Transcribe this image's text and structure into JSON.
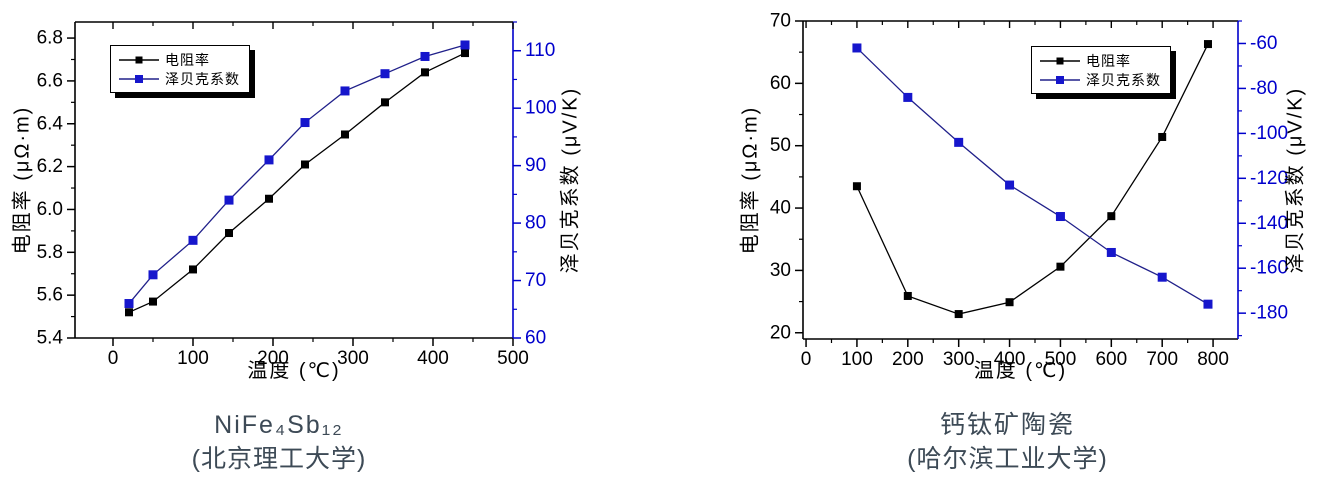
{
  "figure": {
    "background": "#ffffff",
    "left_axis_color": "#000000",
    "caption_color": "#3d4a56"
  },
  "chart_data": [
    {
      "type": "line",
      "title": "NiFe₄Sb₁₂",
      "subtitle": "(北京理工大学)",
      "xlabel": "温度 (℃)",
      "ylabel_left": "电阻率 (μΩ·m)",
      "ylabel_right": "泽贝克系数 (μV/K)",
      "legend_position": "top-left-inside",
      "grid": false,
      "x_range": [
        -47.5,
        500
      ],
      "x_ticks": [
        "0",
        "100",
        "200",
        "300",
        "400",
        "500"
      ],
      "x_minor_step": 50,
      "yleft_range": [
        5.4,
        6.875
      ],
      "yleft_ticks": [
        "5.4",
        "5.6",
        "5.8",
        "6.0",
        "6.2",
        "6.4",
        "6.6",
        "6.8"
      ],
      "yleft_minor_step": 0.1,
      "yright_range": [
        60,
        115
      ],
      "yright_ticks": [
        "60",
        "70",
        "80",
        "90",
        "100",
        "110"
      ],
      "yright_minor_step": 5,
      "right_axis_color": "#0000cc",
      "series": [
        {
          "name": "电阻率",
          "axis": "left",
          "line_color": "#000000",
          "marker_color": "#000000",
          "x": [
            20,
            50,
            100,
            145,
            195,
            240,
            290,
            340,
            390,
            440
          ],
          "y": [
            5.52,
            5.57,
            5.72,
            5.89,
            6.05,
            6.21,
            6.35,
            6.5,
            6.64,
            6.73
          ]
        },
        {
          "name": "泽贝克系数",
          "axis": "right",
          "line_color": "#20208a",
          "marker_color": "#1616cc",
          "x": [
            20,
            50,
            100,
            145,
            195,
            240,
            290,
            340,
            390,
            440
          ],
          "y": [
            66,
            71,
            77,
            84,
            91,
            97.5,
            103,
            106,
            109,
            111
          ]
        }
      ]
    },
    {
      "type": "line",
      "title": "钙钛矿陶瓷",
      "subtitle": "(哈尔滨工业大学)",
      "xlabel": "温度 (℃)",
      "ylabel_left": "电阻率 (μΩ·m)",
      "ylabel_right": "泽贝克系数 (μV/K)",
      "legend_position": "top-center-inside",
      "grid": false,
      "x_range": [
        -6,
        849
      ],
      "x_ticks": [
        "0",
        "100",
        "200",
        "300",
        "400",
        "500",
        "600",
        "700",
        "800"
      ],
      "x_minor_step": 50,
      "yleft_range": [
        19,
        70
      ],
      "yleft_ticks": [
        "20",
        "30",
        "40",
        "50",
        "60",
        "70"
      ],
      "yleft_minor_step": 5,
      "yright_range": [
        -191.5,
        -50
      ],
      "yright_ticks": [
        "-60",
        "-80",
        "-100",
        "-120",
        "-140",
        "-160",
        "-180"
      ],
      "yright_minor_step": 10,
      "right_axis_color": "#0000cc",
      "series": [
        {
          "name": "电阻率",
          "axis": "left",
          "line_color": "#000000",
          "marker_color": "#000000",
          "x": [
            100,
            200,
            300,
            400,
            500,
            600,
            700,
            790
          ],
          "y": [
            43.5,
            25.9,
            23.0,
            24.9,
            30.6,
            38.7,
            51.4,
            66.3
          ]
        },
        {
          "name": "泽贝克系数",
          "axis": "right",
          "line_color": "#20208a",
          "marker_color": "#1616cc",
          "x": [
            100,
            200,
            300,
            400,
            500,
            600,
            700,
            790
          ],
          "y": [
            -62,
            -84,
            -104,
            -123,
            -137,
            -153,
            -164,
            -176
          ]
        }
      ]
    }
  ]
}
